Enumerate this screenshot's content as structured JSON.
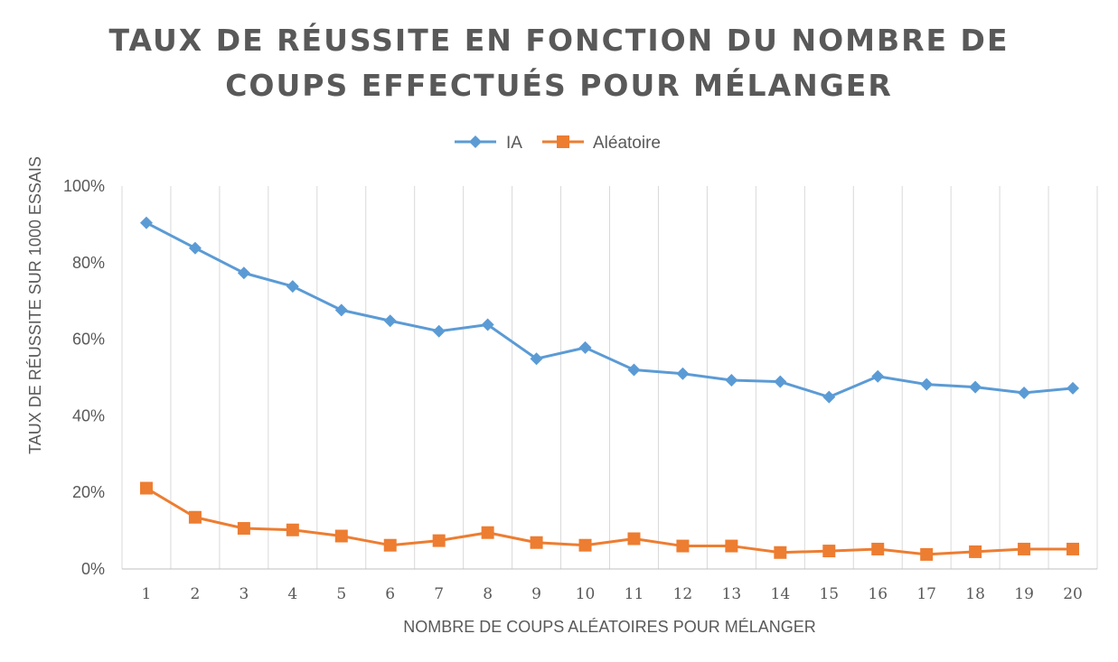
{
  "chart_data": {
    "type": "line",
    "title_lines": [
      "TAUX DE RÉUSSITE EN FONCTION DU NOMBRE DE",
      "COUPS EFFECTUÉS POUR MÉLANGER"
    ],
    "xlabel": "NOMBRE DE COUPS ALÉATOIRES POUR MÉLANGER",
    "ylabel": "TAUX DE RÉUSSITE SUR 1000 ESSAIS",
    "categories": [
      "1",
      "2",
      "3",
      "4",
      "5",
      "6",
      "7",
      "8",
      "9",
      "10",
      "11",
      "12",
      "13",
      "14",
      "15",
      "16",
      "17",
      "18",
      "19",
      "20"
    ],
    "y_ticks": [
      "0%",
      "20%",
      "40%",
      "60%",
      "80%",
      "100%"
    ],
    "ylim": [
      0,
      1
    ],
    "grid": "vertical",
    "legend_position": "top",
    "series": [
      {
        "name": "IA",
        "color": "#5B9BD5",
        "marker": "diamond",
        "values": [
          0.904,
          0.838,
          0.773,
          0.738,
          0.676,
          0.648,
          0.621,
          0.638,
          0.549,
          0.578,
          0.52,
          0.51,
          0.493,
          0.489,
          0.449,
          0.503,
          0.482,
          0.475,
          0.46,
          0.472
        ]
      },
      {
        "name": "Aléatoire",
        "color": "#ED7D31",
        "marker": "square",
        "values": [
          0.211,
          0.135,
          0.106,
          0.102,
          0.086,
          0.062,
          0.074,
          0.095,
          0.069,
          0.062,
          0.079,
          0.06,
          0.06,
          0.043,
          0.047,
          0.052,
          0.038,
          0.045,
          0.052,
          0.052
        ]
      }
    ]
  }
}
